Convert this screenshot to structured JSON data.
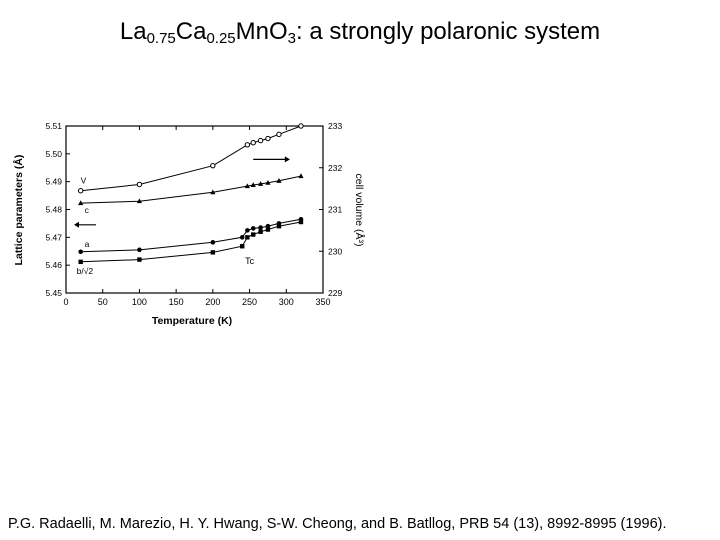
{
  "slide": {
    "title_parts": [
      "La",
      "0.75",
      "Ca",
      "0.25",
      "MnO",
      "3",
      ": a strongly polaronic system"
    ],
    "citation": "P.G. Radaelli, M. Marezio, H. Y. Hwang, S-W. Cheong, and B. Batllog, PRB 54 (13), 8992-8995 (1996)."
  },
  "chart_data": {
    "type": "line",
    "title": "",
    "xlabel": "Temperature (K)",
    "ylabel": "Lattice parameters (Å)",
    "y2label": "cell volume (Å³)",
    "xlim": [
      0,
      350
    ],
    "ylim": [
      5.45,
      5.51
    ],
    "y2lim": [
      229,
      233
    ],
    "xticks": [
      "0",
      "50",
      "100",
      "150",
      "200",
      "250",
      "300",
      "350"
    ],
    "yticks": [
      "5.45",
      "5.46",
      "5.47",
      "5.48",
      "5.49",
      "5.50",
      "5.51"
    ],
    "y2ticks": [
      "229",
      "230",
      "231",
      "232",
      "233"
    ],
    "series": [
      {
        "name": "V",
        "axis": "right",
        "marker": "open-circle",
        "x": [
          20,
          100,
          200,
          247,
          255,
          265,
          275,
          290,
          320
        ],
        "y": [
          231.45,
          231.6,
          232.05,
          232.55,
          232.6,
          232.65,
          232.7,
          232.8,
          233.0
        ]
      },
      {
        "name": "c",
        "axis": "left",
        "marker": "triangle",
        "x": [
          20,
          100,
          200,
          247,
          255,
          265,
          275,
          290,
          320
        ],
        "y": [
          5.4823,
          5.483,
          5.4862,
          5.4884,
          5.4888,
          5.4892,
          5.4896,
          5.4903,
          5.492
        ]
      },
      {
        "name": "a",
        "axis": "left",
        "marker": "filled-circle",
        "x": [
          20,
          100,
          200,
          240,
          247,
          255,
          265,
          275,
          290,
          320
        ],
        "y": [
          5.4648,
          5.4655,
          5.4682,
          5.47,
          5.4725,
          5.4732,
          5.4735,
          5.474,
          5.475,
          5.4765
        ]
      },
      {
        "name": "b/√2",
        "axis": "left",
        "marker": "filled-square",
        "x": [
          20,
          100,
          200,
          240,
          247,
          255,
          265,
          275,
          290,
          320
        ],
        "y": [
          5.4612,
          5.462,
          5.4646,
          5.4668,
          5.47,
          5.471,
          5.472,
          5.4728,
          5.474,
          5.4755
        ]
      }
    ],
    "annotations": {
      "tc_label": "Tc",
      "tc_value": 250
    }
  }
}
